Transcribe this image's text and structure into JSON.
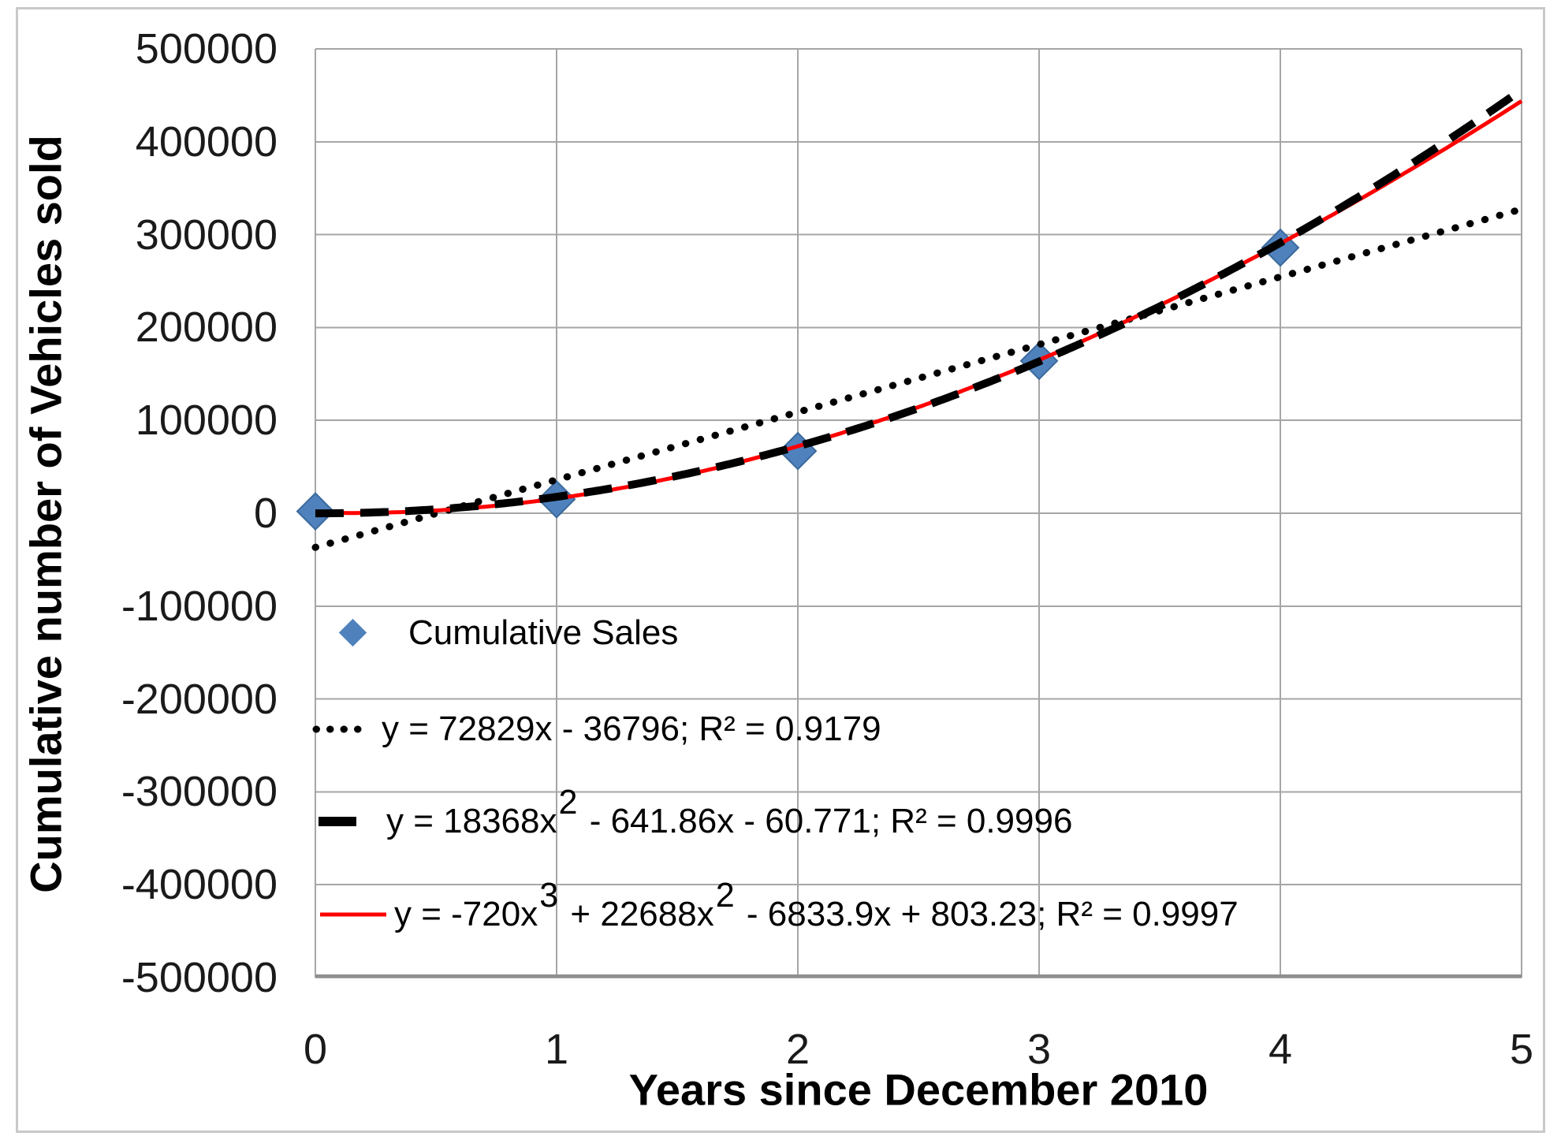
{
  "figure": {
    "background": "#FFFFFF",
    "border_color": "#C9C9C9",
    "gridline_color": "#A6A6A6"
  },
  "chart_data": {
    "type": "scatter",
    "title": "",
    "xlabel": "Years since December 2010",
    "ylabel": "Cumulative number of Vehicles sold",
    "xlim": [
      0,
      5
    ],
    "ylim": [
      -500000,
      500000
    ],
    "x_ticks": [
      "0",
      "1",
      "2",
      "3",
      "4",
      "5"
    ],
    "y_ticks": [
      "500000",
      "400000",
      "300000",
      "200000",
      "100000",
      "0",
      "-100000",
      "-200000",
      "-300000",
      "-400000",
      "-500000"
    ],
    "grid": true,
    "legend_position": "inside plot, left-bottom area",
    "series": [
      {
        "name": "Cumulative Sales",
        "marker": "diamond",
        "color": "#4F81BD",
        "points": [
          {
            "x": 0,
            "y": 2000
          },
          {
            "x": 1,
            "y": 15000
          },
          {
            "x": 2,
            "y": 67000
          },
          {
            "x": 3,
            "y": 164000
          },
          {
            "x": 4,
            "y": 286000
          }
        ]
      }
    ],
    "trendlines": [
      {
        "label": "y = 72829x - 36796; R² = 0.9179",
        "type": "linear",
        "coefficients": [
          -36796,
          72829
        ],
        "r_squared": 0.9179,
        "line_style": "dotted",
        "color": "#000000",
        "label_segments": [
          {
            "text": "y = 72829x - 36796; R² = 0.9179"
          }
        ]
      },
      {
        "label": "y = 18368x² - 641.86x - 60.771; R² = 0.9996",
        "type": "quadratic",
        "coefficients": [
          -60.771,
          -641.86,
          18368
        ],
        "r_squared": 0.9996,
        "line_style": "dashed",
        "color": "#000000",
        "label_segments": [
          {
            "text": "y = 18368x"
          },
          {
            "sup": "2"
          },
          {
            "text": " - 641.86x - 60.771; R² = 0.9996"
          }
        ]
      },
      {
        "label": "y = -720x³ + 22688x² - 6833.9x + 803.23; R² = 0.9997",
        "type": "cubic",
        "coefficients": [
          803.23,
          -6833.9,
          22688,
          -720
        ],
        "r_squared": 0.9997,
        "line_style": "solid",
        "color": "#FF0000",
        "label_segments": [
          {
            "text": "y = -720x"
          },
          {
            "sup": "3"
          },
          {
            "text": " + 22688x"
          },
          {
            "sup": "2"
          },
          {
            "text": " - 6833.9x + 803.23; R² = 0.9997"
          }
        ]
      }
    ]
  }
}
